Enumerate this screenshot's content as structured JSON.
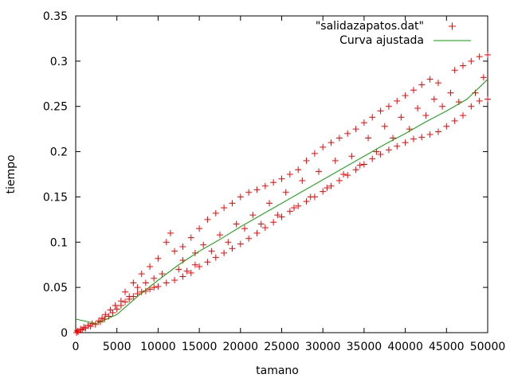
{
  "chart_data": {
    "type": "scatter",
    "xlabel": "tamano",
    "ylabel": "tiempo",
    "xlim": [
      0,
      50000
    ],
    "ylim": [
      0,
      0.35
    ],
    "xticks": [
      0,
      5000,
      10000,
      15000,
      20000,
      25000,
      30000,
      35000,
      40000,
      45000,
      50000
    ],
    "xtick_labels": [
      "0",
      "5000",
      "10000",
      "15000",
      "20000",
      "25000",
      "30000",
      "35000",
      "40000",
      "45000",
      "50000"
    ],
    "yticks": [
      0,
      0.05,
      0.1,
      0.15,
      0.2,
      0.25,
      0.3,
      0.35
    ],
    "ytick_labels": [
      "0",
      "0.05",
      "0.1",
      "0.15",
      "0.2",
      "0.25",
      "0.3",
      "0.35"
    ],
    "grid": false,
    "legend_position": "top-right",
    "series": [
      {
        "name": "\"salidazapatos.dat\"",
        "type": "scatter",
        "marker": "plus",
        "color": "#ff0000",
        "points": [
          [
            300,
            0.001
          ],
          [
            800,
            0.003
          ],
          [
            1200,
            0.005
          ],
          [
            1800,
            0.007
          ],
          [
            2400,
            0.009
          ],
          [
            3000,
            0.012
          ],
          [
            3500,
            0.015
          ],
          [
            4000,
            0.018
          ],
          [
            4500,
            0.022
          ],
          [
            5000,
            0.026
          ],
          [
            5500,
            0.03
          ],
          [
            6000,
            0.034
          ],
          [
            6500,
            0.037
          ],
          [
            7000,
            0.04
          ],
          [
            7500,
            0.043
          ],
          [
            8000,
            0.045
          ],
          [
            8500,
            0.046
          ],
          [
            9000,
            0.048
          ],
          [
            9500,
            0.05
          ],
          [
            10000,
            0.051
          ],
          [
            11000,
            0.055
          ],
          [
            12000,
            0.058
          ],
          [
            13000,
            0.062
          ],
          [
            14000,
            0.066
          ],
          [
            15000,
            0.073
          ],
          [
            16000,
            0.078
          ],
          [
            17000,
            0.083
          ],
          [
            18000,
            0.088
          ],
          [
            19000,
            0.093
          ],
          [
            20000,
            0.098
          ],
          [
            21000,
            0.104
          ],
          [
            22000,
            0.11
          ],
          [
            23000,
            0.116
          ],
          [
            24000,
            0.122
          ],
          [
            25000,
            0.128
          ],
          [
            26000,
            0.134
          ],
          [
            27000,
            0.14
          ],
          [
            28000,
            0.145
          ],
          [
            29000,
            0.15
          ],
          [
            30000,
            0.156
          ],
          [
            31000,
            0.162
          ],
          [
            32000,
            0.168
          ],
          [
            33000,
            0.174
          ],
          [
            34000,
            0.18
          ],
          [
            35000,
            0.186
          ],
          [
            36000,
            0.192
          ],
          [
            37000,
            0.197
          ],
          [
            38000,
            0.202
          ],
          [
            39000,
            0.206
          ],
          [
            40000,
            0.21
          ],
          [
            41000,
            0.214
          ],
          [
            42000,
            0.216
          ],
          [
            43000,
            0.219
          ],
          [
            44000,
            0.222
          ],
          [
            45000,
            0.228
          ],
          [
            46000,
            0.234
          ],
          [
            47000,
            0.24
          ],
          [
            48000,
            0.25
          ],
          [
            49000,
            0.256
          ],
          [
            50000,
            0.258
          ],
          [
            6000,
            0.045
          ],
          [
            7000,
            0.055
          ],
          [
            8000,
            0.065
          ],
          [
            9000,
            0.073
          ],
          [
            10000,
            0.082
          ],
          [
            11000,
            0.1
          ],
          [
            11500,
            0.11
          ],
          [
            12000,
            0.09
          ],
          [
            13000,
            0.095
          ],
          [
            14000,
            0.105
          ],
          [
            15000,
            0.115
          ],
          [
            16000,
            0.125
          ],
          [
            17000,
            0.132
          ],
          [
            18000,
            0.138
          ],
          [
            19000,
            0.143
          ],
          [
            20000,
            0.15
          ],
          [
            21000,
            0.155
          ],
          [
            22000,
            0.158
          ],
          [
            23000,
            0.162
          ],
          [
            24000,
            0.166
          ],
          [
            25000,
            0.17
          ],
          [
            26000,
            0.175
          ],
          [
            27000,
            0.18
          ],
          [
            28000,
            0.19
          ],
          [
            29000,
            0.198
          ],
          [
            30000,
            0.205
          ],
          [
            31000,
            0.21
          ],
          [
            32000,
            0.215
          ],
          [
            33000,
            0.22
          ],
          [
            34000,
            0.225
          ],
          [
            35000,
            0.232
          ],
          [
            36000,
            0.238
          ],
          [
            37000,
            0.245
          ],
          [
            38000,
            0.25
          ],
          [
            39000,
            0.256
          ],
          [
            40000,
            0.262
          ],
          [
            41000,
            0.268
          ],
          [
            42000,
            0.274
          ],
          [
            43000,
            0.28
          ],
          [
            44000,
            0.276
          ],
          [
            46000,
            0.29
          ],
          [
            47000,
            0.295
          ],
          [
            48000,
            0.3
          ],
          [
            49000,
            0.305
          ],
          [
            50000,
            0.307
          ],
          [
            12500,
            0.07
          ],
          [
            13500,
            0.068
          ],
          [
            14500,
            0.075
          ],
          [
            16500,
            0.09
          ],
          [
            18500,
            0.1
          ],
          [
            20500,
            0.115
          ],
          [
            22500,
            0.12
          ],
          [
            24500,
            0.13
          ],
          [
            26500,
            0.138
          ],
          [
            28500,
            0.15
          ],
          [
            30500,
            0.16
          ],
          [
            32500,
            0.175
          ],
          [
            34500,
            0.185
          ],
          [
            36500,
            0.2
          ],
          [
            38500,
            0.215
          ],
          [
            40500,
            0.225
          ],
          [
            42500,
            0.24
          ],
          [
            44500,
            0.25
          ],
          [
            46500,
            0.255
          ],
          [
            48500,
            0.265
          ],
          [
            49500,
            0.282
          ],
          [
            45500,
            0.265
          ],
          [
            43500,
            0.258
          ],
          [
            41500,
            0.248
          ],
          [
            39500,
            0.238
          ],
          [
            37500,
            0.228
          ],
          [
            35500,
            0.215
          ],
          [
            33500,
            0.195
          ],
          [
            31500,
            0.19
          ],
          [
            29500,
            0.178
          ],
          [
            27500,
            0.168
          ],
          [
            25500,
            0.155
          ],
          [
            23500,
            0.143
          ],
          [
            21500,
            0.13
          ],
          [
            19500,
            0.12
          ],
          [
            17500,
            0.108
          ],
          [
            15500,
            0.097
          ],
          [
            14500,
            0.088
          ],
          [
            13000,
            0.08
          ],
          [
            10500,
            0.065
          ],
          [
            9500,
            0.06
          ],
          [
            8500,
            0.055
          ],
          [
            7500,
            0.05
          ],
          [
            6500,
            0.04
          ],
          [
            5500,
            0.035
          ],
          [
            4800,
            0.03
          ],
          [
            4200,
            0.025
          ],
          [
            3600,
            0.02
          ],
          [
            3200,
            0.016
          ],
          [
            2800,
            0.013
          ],
          [
            2000,
            0.01
          ],
          [
            1500,
            0.008
          ],
          [
            1000,
            0.006
          ],
          [
            600,
            0.004
          ],
          [
            200,
            0.002
          ],
          [
            100,
            0.0
          ]
        ]
      },
      {
        "name": "Curva ajustada",
        "type": "line",
        "color": "#00a000",
        "x": [
          0,
          2500,
          5000,
          7500,
          10000,
          12500,
          15000,
          17500,
          20000,
          22500,
          25000,
          27500,
          30000,
          32500,
          35000,
          37500,
          40000,
          42500,
          45000,
          47500,
          50000
        ],
        "y": [
          0.015,
          0.01,
          0.02,
          0.04,
          0.058,
          0.075,
          0.09,
          0.103,
          0.117,
          0.13,
          0.143,
          0.156,
          0.169,
          0.182,
          0.195,
          0.208,
          0.22,
          0.233,
          0.245,
          0.258,
          0.28
        ]
      }
    ]
  }
}
